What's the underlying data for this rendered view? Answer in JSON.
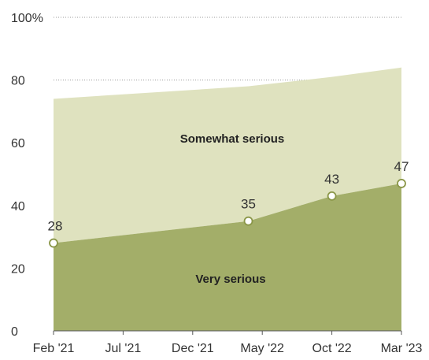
{
  "chart_data": {
    "type": "area",
    "x_dates": [
      "2021-02",
      "2022-04",
      "2022-10",
      "2023-03"
    ],
    "x_tick_labels": [
      {
        "date": "2021-02",
        "label": "Feb '21"
      },
      {
        "date": "2021-07",
        "label": "Jul '21"
      },
      {
        "date": "2021-12",
        "label": "Dec '21"
      },
      {
        "date": "2022-05",
        "label": "May '22"
      },
      {
        "date": "2022-10",
        "label": "Oct '22"
      },
      {
        "date": "2023-03",
        "label": "Mar '23"
      }
    ],
    "series": [
      {
        "name": "Very serious",
        "values": [
          28,
          35,
          43,
          47
        ],
        "color": "#a3ae69"
      },
      {
        "name": "Somewhat serious",
        "values": [
          46,
          43,
          38,
          37
        ],
        "color": "#dfe2bf"
      }
    ],
    "stack_totals": [
      74,
      78,
      81,
      84
    ],
    "data_labels": [
      "28",
      "35",
      "43",
      "47"
    ],
    "y_ticks": [
      {
        "value": 0,
        "label": "0"
      },
      {
        "value": 20,
        "label": "20"
      },
      {
        "value": 40,
        "label": "40"
      },
      {
        "value": 60,
        "label": "60"
      },
      {
        "value": 80,
        "label": "80"
      },
      {
        "value": 100,
        "label": "100%"
      }
    ],
    "ylim": [
      0,
      100
    ],
    "grid": true,
    "marker_stroke": "#8a9648",
    "title": "",
    "xlabel": "",
    "ylabel": ""
  }
}
